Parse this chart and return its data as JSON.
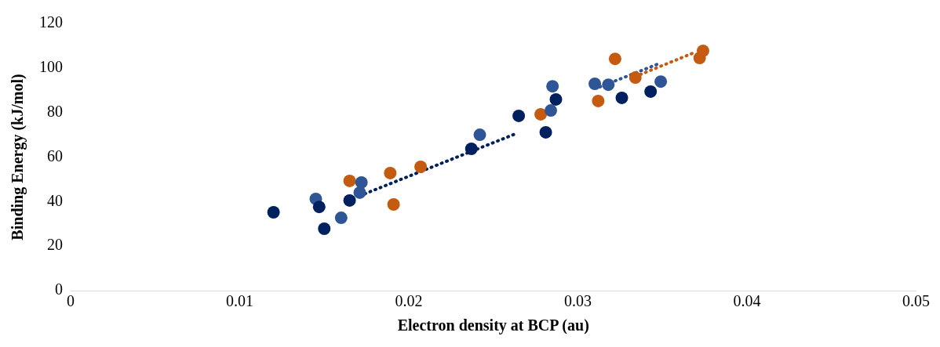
{
  "chart_data": {
    "type": "scatter",
    "xlabel": "Electron density at BCP (au)",
    "ylabel": "Binding Energy (kJ/mol)",
    "xlim": [
      0,
      0.05
    ],
    "xticks": [
      0,
      0.01,
      0.02,
      0.03,
      0.04,
      0.05
    ],
    "ylim": [
      0,
      120
    ],
    "yticks": [
      0,
      20,
      40,
      60,
      80,
      100,
      120
    ],
    "grid": false,
    "legend": false,
    "marker": "circle",
    "series": [
      {
        "color": "#002060",
        "x": [
          0.012,
          0.0147,
          0.015,
          0.0165,
          0.0237,
          0.0265,
          0.0281,
          0.0287,
          0.0326,
          0.0343
        ],
        "values": [
          35.2,
          37.6,
          27.8,
          40.5,
          63.7,
          78.5,
          71.1,
          85.9,
          86.6,
          89.4
        ]
      },
      {
        "color": "#2f5597",
        "x": [
          0.0145,
          0.016,
          0.0172,
          0.0171,
          0.0242,
          0.0284,
          0.0285,
          0.031,
          0.0318,
          0.0349
        ],
        "values": [
          41.2,
          32.7,
          48.6,
          44.0,
          70.0,
          80.9,
          91.8,
          92.9,
          92.5,
          93.9
        ]
      },
      {
        "color": "#c55a11",
        "x": [
          0.0165,
          0.0189,
          0.0207,
          0.0191,
          0.0278,
          0.0312,
          0.0322,
          0.0334,
          0.0372,
          0.0374
        ],
        "values": [
          49.3,
          52.8,
          55.6,
          38.7,
          79.2,
          85.2,
          104.1,
          95.7,
          104.5,
          107.7
        ]
      },
      {
        "type": "line",
        "line_style": "dotted",
        "marker": "none",
        "color": "#002060",
        "x": [
          0.0171,
          0.0264
        ],
        "values": [
          42.6,
          70.7
        ]
      },
      {
        "type": "line",
        "line_style": "dotted",
        "marker": "none",
        "color": "#2f5597",
        "x": [
          0.0313,
          0.0347
        ],
        "values": [
          91.5,
          101.7
        ]
      },
      {
        "type": "line",
        "line_style": "dotted",
        "marker": "none",
        "color": "#c55a11",
        "x": [
          0.0337,
          0.037
        ],
        "values": [
          97.1,
          107.3
        ]
      }
    ]
  }
}
